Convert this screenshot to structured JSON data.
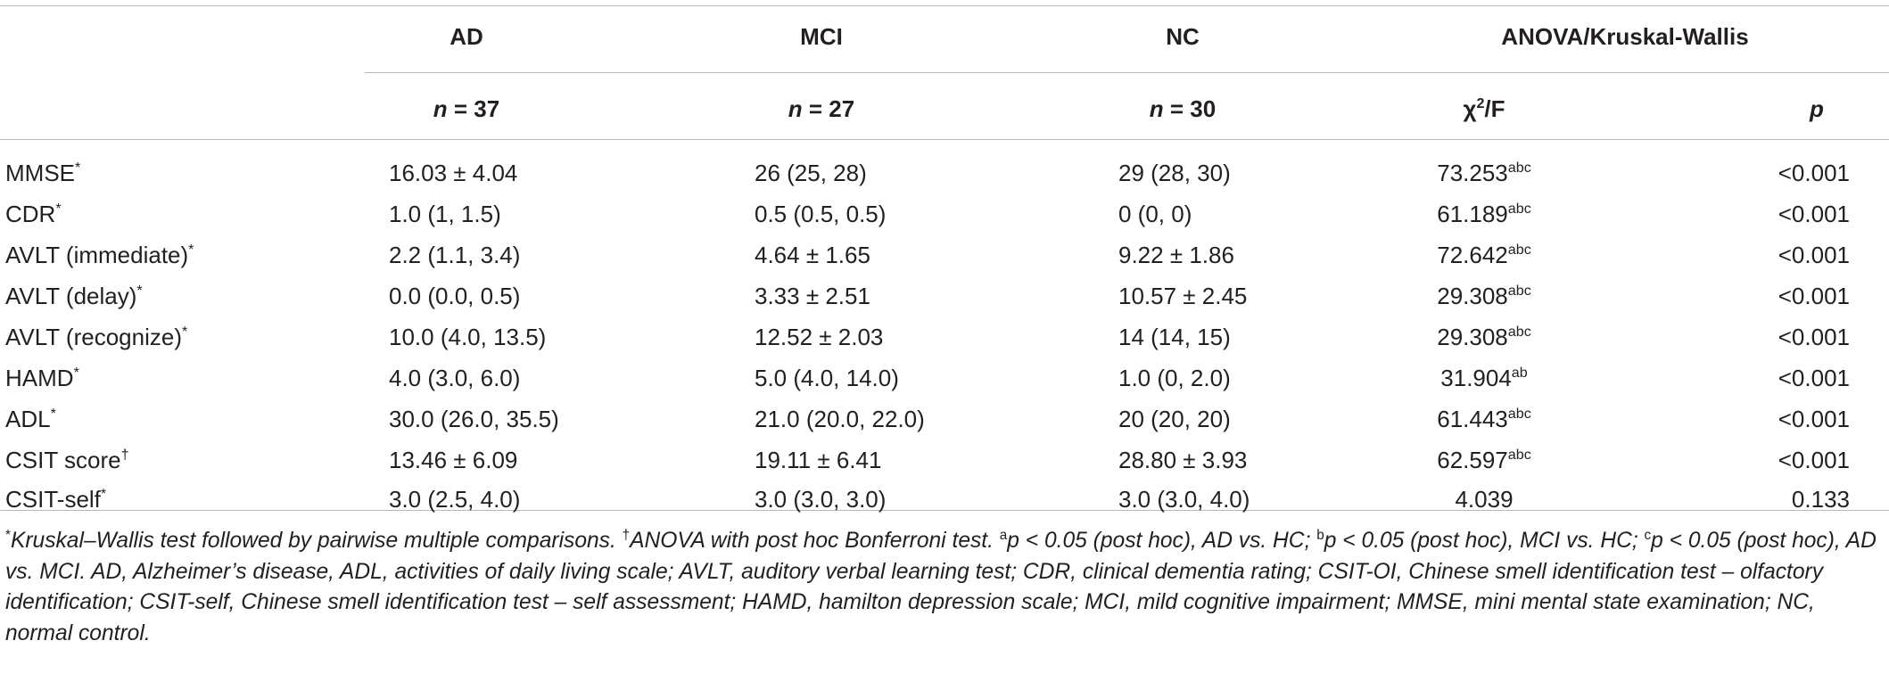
{
  "header": {
    "groups": [
      "AD",
      "MCI",
      "NC",
      "ANOVA/Kruskal-Wallis"
    ],
    "n_label": "n",
    "n_values": [
      "37",
      "27",
      "30"
    ],
    "stat_label_base": "χ",
    "stat_label_sup": "2",
    "stat_label_tail": "/F",
    "p_label": "p"
  },
  "rows": [
    {
      "label": "MMSE",
      "label_mark": "*",
      "ad": "16.03 ± 4.04",
      "mci": "26 (25, 28)",
      "nc": "29 (28, 30)",
      "stat": "73.253",
      "stat_sup": "abc",
      "p": "<0.001"
    },
    {
      "label": "CDR",
      "label_mark": "*",
      "ad": "1.0 (1, 1.5)",
      "mci": "0.5 (0.5, 0.5)",
      "nc": "0 (0, 0)",
      "stat": "61.189",
      "stat_sup": "abc",
      "p": "<0.001"
    },
    {
      "label": "AVLT (immediate)",
      "label_mark": "*",
      "ad": "2.2 (1.1, 3.4)",
      "mci": "4.64 ± 1.65",
      "nc": "9.22 ± 1.86",
      "stat": "72.642",
      "stat_sup": "abc",
      "p": "<0.001"
    },
    {
      "label": "AVLT (delay)",
      "label_mark": "*",
      "ad": "0.0 (0.0, 0.5)",
      "mci": "3.33 ± 2.51",
      "nc": "10.57 ± 2.45",
      "stat": "29.308",
      "stat_sup": "abc",
      "p": "<0.001"
    },
    {
      "label": "AVLT (recognize)",
      "label_mark": "*",
      "ad": "10.0 (4.0, 13.5)",
      "mci": "12.52 ± 2.03",
      "nc": "14 (14, 15)",
      "stat": "29.308",
      "stat_sup": "abc",
      "p": "<0.001"
    },
    {
      "label": "HAMD",
      "label_mark": "*",
      "ad": "4.0 (3.0, 6.0)",
      "mci": "5.0 (4.0, 14.0)",
      "nc": "1.0 (0, 2.0)",
      "stat": "31.904",
      "stat_sup": "ab",
      "p": "<0.001"
    },
    {
      "label": "ADL",
      "label_mark": "*",
      "ad": "30.0 (26.0, 35.5)",
      "mci": "21.0 (20.0, 22.0)",
      "nc": "20 (20, 20)",
      "stat": "61.443",
      "stat_sup": "abc",
      "p": "<0.001"
    },
    {
      "label": "CSIT score",
      "label_mark": "†",
      "ad": "13.46 ± 6.09",
      "mci": "19.11 ± 6.41",
      "nc": "28.80 ± 3.93",
      "stat": "62.597",
      "stat_sup": "abc",
      "p": "<0.001"
    },
    {
      "label": "CSIT-self",
      "label_mark": "*",
      "ad": "3.0 (2.5, 4.0)",
      "mci": "3.0 (3.0, 3.0)",
      "nc": "3.0 (3.0, 4.0)",
      "stat": "4.039",
      "stat_sup": "",
      "p": "0.133"
    }
  ],
  "footnote": {
    "m1": "*",
    "t1": "Kruskal–Wallis test followed by pairwise multiple comparisons. ",
    "m2": "†",
    "t2": "ANOVA with post hoc Bonferroni test. ",
    "m3": "a",
    "t3": "p < 0.05 (post hoc), AD vs. HC; ",
    "m4": "b",
    "t4": "p < 0.05 (post hoc), MCI vs. HC; ",
    "m5": "c",
    "t5": "p < 0.05 (post hoc), AD vs. MCI. AD, Alzheimer’s disease, ADL, activities of daily living scale; AVLT, auditory verbal learning test; CDR, clinical dementia rating; CSIT-OI, Chinese smell identification test – olfactory identification; CSIT-self, Chinese smell identification test – self assessment; HAMD, hamilton depression scale; MCI, mild cognitive impairment; MMSE, mini mental state examination; NC, normal control."
  }
}
